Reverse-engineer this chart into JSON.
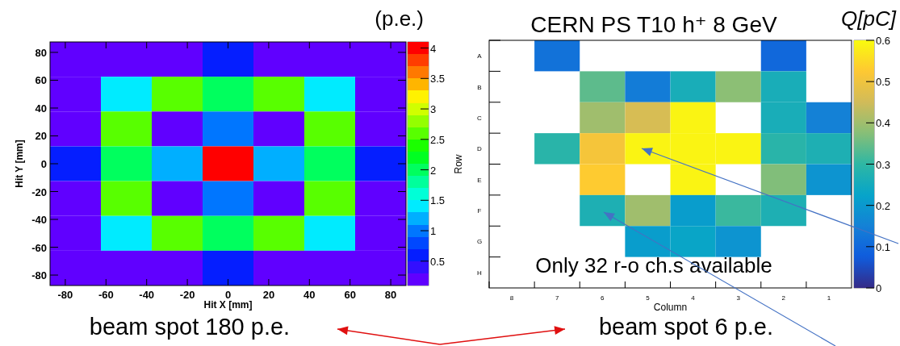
{
  "chart_data": [
    {
      "type": "heatmap",
      "xlabel": "Hit X [mm]",
      "ylabel": "Hit Y [mm]",
      "clabel": "(p.e.)",
      "xlim": [
        -87.5,
        87.5
      ],
      "xticks": [
        -80,
        -60,
        -40,
        -20,
        0,
        20,
        40,
        60,
        80
      ],
      "ylim": [
        -87.5,
        87.5
      ],
      "yticks": [
        -80,
        -60,
        -40,
        -20,
        0,
        20,
        40,
        60,
        80
      ],
      "clim": [
        0.1,
        4.1
      ],
      "cticks": [
        0.5,
        1,
        1.5,
        2,
        2.5,
        3,
        3.5,
        4
      ],
      "cells": [
        [
          0.2,
          0.2,
          0.2,
          0.5,
          0.2,
          0.2,
          0.2
        ],
        [
          0.2,
          1.4,
          2.6,
          1.9,
          2.6,
          1.4,
          0.2
        ],
        [
          0.2,
          2.6,
          0.2,
          1.0,
          0.2,
          2.6,
          0.2
        ],
        [
          0.5,
          1.9,
          1.2,
          4.0,
          1.2,
          1.9,
          0.5
        ],
        [
          0.2,
          2.6,
          0.2,
          1.0,
          0.2,
          2.6,
          0.2
        ],
        [
          0.2,
          1.4,
          2.6,
          1.9,
          2.6,
          1.4,
          0.2
        ],
        [
          0.2,
          0.2,
          0.2,
          0.5,
          0.2,
          0.2,
          0.2
        ]
      ],
      "annotations": [
        "beam spot 180 p.e."
      ]
    },
    {
      "type": "heatmap",
      "title": "CERN PS T10 h⁺ 8 GeV",
      "xlabel": "Column",
      "ylabel": "Row",
      "clabel": "Q[pC]",
      "categories": [
        "8",
        "7",
        "6",
        "5",
        "4",
        "3",
        "2",
        "1"
      ],
      "y_categories": [
        "A",
        "B",
        "C",
        "D",
        "E",
        "F",
        "G",
        "H"
      ],
      "clim": [
        0,
        0.6
      ],
      "cticks": [
        0,
        0.1,
        0.2,
        0.3,
        0.4,
        0.5,
        0.6
      ],
      "cells": [
        [
          null,
          0.12,
          null,
          null,
          null,
          null,
          0.1,
          null
        ],
        [
          null,
          null,
          0.34,
          0.14,
          0.26,
          0.38,
          0.26,
          null
        ],
        [
          null,
          null,
          0.4,
          0.46,
          0.59,
          null,
          0.26,
          0.15
        ],
        [
          null,
          0.29,
          0.51,
          0.59,
          0.59,
          0.59,
          0.29,
          0.27
        ],
        [
          null,
          null,
          0.53,
          null,
          0.59,
          null,
          0.37,
          0.19
        ],
        [
          null,
          null,
          0.27,
          0.4,
          0.21,
          0.31,
          0.27,
          null
        ],
        [
          null,
          null,
          null,
          0.21,
          0.23,
          0.19,
          null,
          null
        ],
        [
          null,
          null,
          null,
          null,
          null,
          null,
          null,
          null
        ]
      ],
      "annotations": [
        "Only 32 r-o ch.s available",
        "beam spot 6 p.e."
      ]
    }
  ]
}
